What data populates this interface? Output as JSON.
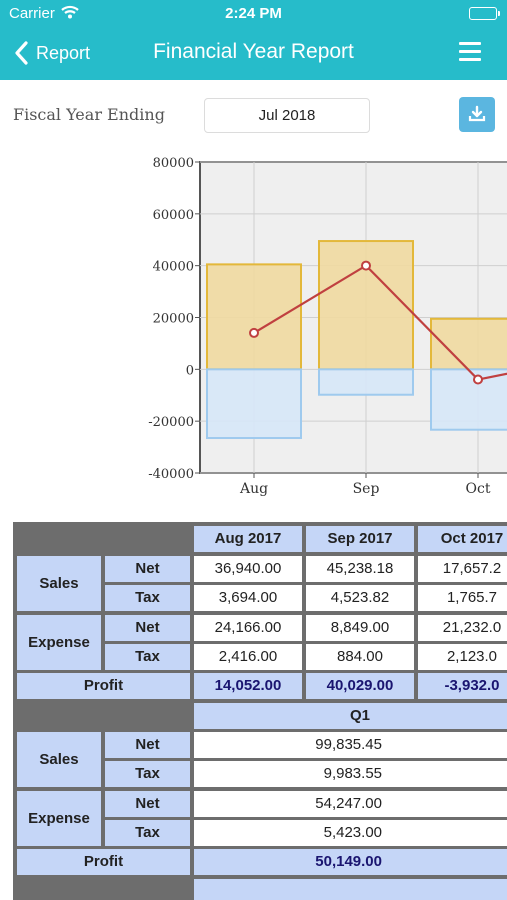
{
  "status_bar": {
    "carrier": "Carrier",
    "time": "2:24 PM"
  },
  "nav": {
    "back_label": "Report",
    "title": "Financial Year Report"
  },
  "filter": {
    "label": "Fiscal Year Ending",
    "value": "Jul 2018"
  },
  "chart_data": {
    "type": "bar",
    "categories": [
      "Aug",
      "Sep",
      "Oct"
    ],
    "series": [
      {
        "name": "Sales",
        "type": "bar",
        "values": [
          40500,
          49500,
          19500
        ],
        "color": "#f0d9a0"
      },
      {
        "name": "Expense",
        "type": "bar",
        "values": [
          -26500,
          -9800,
          -23300
        ],
        "color": "#d6e7f7"
      },
      {
        "name": "Profit",
        "type": "line",
        "values": [
          14052,
          40029,
          -3932
        ],
        "color": "#c04040"
      }
    ],
    "ylim": [
      -40000,
      80000
    ],
    "yticks": [
      "80000",
      "60000",
      "40000",
      "20000",
      "0",
      "-20000",
      "-40000"
    ],
    "grid": true
  },
  "table": {
    "months": [
      "Aug 2017",
      "Sep 2017",
      "Oct 2017"
    ],
    "quarter": "Q1",
    "groups": {
      "sales": "Sales",
      "expense": "Expense"
    },
    "rows": {
      "net": "Net",
      "tax": "Tax",
      "profit": "Profit"
    },
    "monthly": {
      "sales_net": [
        "36,940.00",
        "45,238.18",
        "17,657.2"
      ],
      "sales_tax": [
        "3,694.00",
        "4,523.82",
        "1,765.7"
      ],
      "expense_net": [
        "24,166.00",
        "8,849.00",
        "21,232.0"
      ],
      "expense_tax": [
        "2,416.00",
        "884.00",
        "2,123.0"
      ],
      "profit": [
        "14,052.00",
        "40,029.00",
        "-3,932.0"
      ]
    },
    "q1": {
      "sales_net": "99,835.45",
      "sales_tax": "9,983.55",
      "expense_net": "54,247.00",
      "expense_tax": "5,423.00",
      "profit": "50,149.00"
    }
  }
}
